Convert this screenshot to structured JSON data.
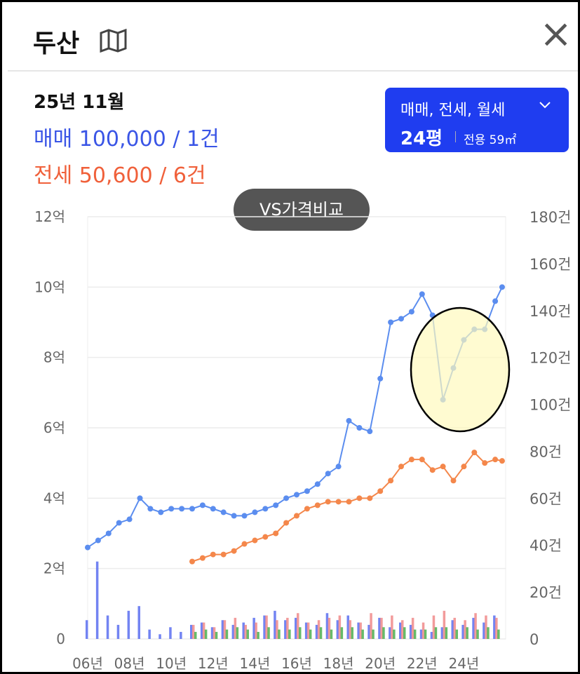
{
  "header": {
    "title": "두산",
    "close": "×"
  },
  "summary": {
    "date": "25년 11월",
    "sale_label": "매매",
    "sale_value": "100,000 / 1건",
    "jeonse_label": "전세",
    "jeonse_value": "50,600 / 6건"
  },
  "filter": {
    "types": "매매, 전세, 월세",
    "size": "24평",
    "area": "전용 59㎡"
  },
  "compare_button": "VS가격비교",
  "chart_data": {
    "type": "line",
    "xlim": [
      6,
      26
    ],
    "xticks": [
      {
        "value": 6,
        "label": "06년"
      },
      {
        "value": 8,
        "label": "08년"
      },
      {
        "value": 10,
        "label": "10년"
      },
      {
        "value": 12,
        "label": "12년"
      },
      {
        "value": 14,
        "label": "14년"
      },
      {
        "value": 16,
        "label": "16년"
      },
      {
        "value": 18,
        "label": "18년"
      },
      {
        "value": 20,
        "label": "20년"
      },
      {
        "value": 22,
        "label": "22년"
      },
      {
        "value": 24,
        "label": "24년"
      }
    ],
    "ylim": [
      0,
      12
    ],
    "yticks": [
      0,
      {
        "value": 2,
        "label": "2억"
      },
      {
        "value": 4,
        "label": "4억"
      },
      {
        "value": 6,
        "label": "6억"
      },
      {
        "value": 8,
        "label": "8억"
      },
      {
        "value": 10,
        "label": "10억"
      },
      {
        "value": 12,
        "label": "12억"
      }
    ],
    "y2lim": [
      0,
      180
    ],
    "y2ticks": [
      0,
      {
        "value": 20,
        "label": "20건"
      },
      {
        "value": 40,
        "label": "40건"
      },
      {
        "value": 60,
        "label": "60건"
      },
      {
        "value": 80,
        "label": "80건"
      },
      {
        "value": 100,
        "label": "100건"
      },
      {
        "value": 120,
        "label": "120건"
      },
      {
        "value": 140,
        "label": "140건"
      },
      {
        "value": 160,
        "label": "160건"
      },
      {
        "value": 180,
        "label": "180건"
      }
    ],
    "grid": true,
    "series": [
      {
        "kind": "line",
        "color": "#5b8def",
        "x": [
          6,
          6.5,
          7,
          7.5,
          8,
          8.5,
          9,
          9.5,
          10,
          10.5,
          11,
          11.5,
          12,
          12.5,
          13,
          13.5,
          14,
          14.5,
          15,
          15.5,
          16,
          16.5,
          17,
          17.5,
          18,
          18.5,
          19,
          19.5,
          20,
          20.5,
          21,
          21.5,
          22,
          22.5,
          23,
          23.5,
          24,
          24.5,
          25,
          25.5,
          25.83
        ],
        "values": [
          2.6,
          2.8,
          3.0,
          3.3,
          3.4,
          4.0,
          3.7,
          3.6,
          3.7,
          3.7,
          3.7,
          3.8,
          3.7,
          3.6,
          3.5,
          3.5,
          3.6,
          3.7,
          3.8,
          4.0,
          4.1,
          4.2,
          4.4,
          4.7,
          4.9,
          6.2,
          6.0,
          5.9,
          7.4,
          9.0,
          9.1,
          9.3,
          9.8,
          9.2,
          6.8,
          7.7,
          8.5,
          8.8,
          8.8,
          9.6,
          10.0
        ]
      },
      {
        "kind": "line",
        "color": "#f4874b",
        "x": [
          11,
          11.5,
          12,
          12.5,
          13,
          13.5,
          14,
          14.5,
          15,
          15.5,
          16,
          16.5,
          17,
          17.5,
          18,
          18.5,
          19,
          19.5,
          20,
          20.5,
          21,
          21.5,
          22,
          22.5,
          23,
          23.5,
          24,
          24.5,
          25,
          25.5,
          25.83
        ],
        "values": [
          2.2,
          2.3,
          2.4,
          2.4,
          2.5,
          2.7,
          2.8,
          2.9,
          3.0,
          3.3,
          3.5,
          3.7,
          3.8,
          3.9,
          3.9,
          3.9,
          4.0,
          4.0,
          4.2,
          4.5,
          4.9,
          5.1,
          5.1,
          4.8,
          4.9,
          4.5,
          4.9,
          5.3,
          5.0,
          5.1,
          5.06
        ]
      },
      {
        "kind": "bar",
        "axis": "y2",
        "color": "#5b6ff0",
        "x": [
          6,
          6.5,
          7,
          7.5,
          8,
          8.5,
          9,
          9.5,
          10,
          10.5,
          11,
          11.5,
          12,
          12.5,
          13,
          13.5,
          14,
          14.5,
          15,
          15.5,
          16,
          16.5,
          17,
          17.5,
          18,
          18.5,
          19,
          19.5,
          20,
          20.5,
          21,
          21.5,
          22,
          22.5,
          23,
          23.5,
          24,
          24.5,
          25,
          25.5
        ],
        "values": [
          8,
          33,
          10,
          6,
          12,
          14,
          4,
          2,
          5,
          3,
          6,
          7,
          5,
          8,
          6,
          7,
          9,
          10,
          12,
          8,
          9,
          7,
          6,
          11,
          8,
          10,
          7,
          6,
          9,
          5,
          7,
          6,
          4,
          3,
          5,
          8,
          6,
          9,
          7,
          10
        ]
      },
      {
        "kind": "bar",
        "axis": "y2",
        "color": "#f08a8a",
        "x": [
          11,
          11.5,
          12,
          12.5,
          13,
          13.5,
          14,
          14.5,
          15,
          15.5,
          16,
          16.5,
          17,
          17.5,
          18,
          18.5,
          19,
          19.5,
          20,
          20.5,
          21,
          21.5,
          22,
          22.5,
          23,
          23.5,
          24,
          24.5,
          25,
          25.5
        ],
        "values": [
          6,
          7,
          5,
          8,
          9,
          6,
          7,
          10,
          8,
          9,
          11,
          7,
          8,
          9,
          10,
          8,
          7,
          11,
          9,
          10,
          8,
          9,
          7,
          10,
          12,
          9,
          8,
          11,
          10,
          9
        ]
      },
      {
        "kind": "bar",
        "axis": "y2",
        "color": "#4caf50",
        "x": [
          11,
          11.5,
          12,
          12.5,
          13,
          13.5,
          14,
          14.5,
          15,
          15.5,
          16,
          16.5,
          17,
          17.5,
          18,
          18.5,
          19,
          19.5,
          20,
          20.5,
          21,
          21.5,
          22,
          22.5,
          23,
          23.5,
          24,
          24.5,
          25,
          25.5
        ],
        "values": [
          3,
          4,
          3,
          4,
          5,
          4,
          3,
          5,
          4,
          4,
          5,
          4,
          5,
          4,
          5,
          5,
          4,
          4,
          5,
          4,
          5,
          4,
          4,
          5,
          5,
          4,
          5,
          4,
          5,
          4
        ]
      }
    ]
  }
}
